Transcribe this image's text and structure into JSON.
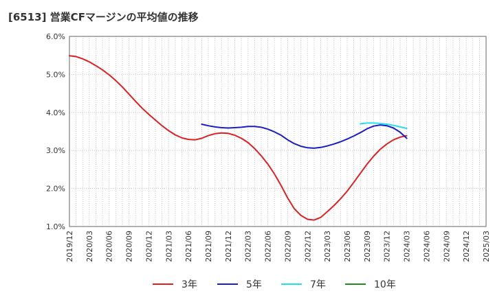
{
  "title": "[6513]  営業CFマージンの平均値の推移",
  "chart_data": {
    "type": "line",
    "title": "[6513]  営業CFマージンの平均値の推移",
    "xlabel": "",
    "ylabel": "",
    "ylim": [
      1.0,
      6.0
    ],
    "y_ticks": [
      "1.0%",
      "2.0%",
      "3.0%",
      "4.0%",
      "5.0%",
      "6.0%"
    ],
    "x_range": [
      "2019/12",
      "2025/03"
    ],
    "x_ticks": [
      "2019/12",
      "2020/03",
      "2020/06",
      "2020/09",
      "2020/12",
      "2021/03",
      "2021/06",
      "2021/09",
      "2021/12",
      "2022/03",
      "2022/06",
      "2022/09",
      "2022/12",
      "2023/03",
      "2023/06",
      "2023/09",
      "2023/12",
      "2024/03",
      "2024/06",
      "2024/09",
      "2024/12",
      "2025/03"
    ],
    "grid": true,
    "legend_position": "bottom",
    "series": [
      {
        "name": "3年",
        "color": "#dd1f1f",
        "points": [
          [
            "2019/12",
            5.49
          ],
          [
            "2020/01",
            5.47
          ],
          [
            "2020/02",
            5.41
          ],
          [
            "2020/03",
            5.33
          ],
          [
            "2020/04",
            5.23
          ],
          [
            "2020/05",
            5.12
          ],
          [
            "2020/06",
            4.99
          ],
          [
            "2020/07",
            4.84
          ],
          [
            "2020/08",
            4.67
          ],
          [
            "2020/09",
            4.48
          ],
          [
            "2020/10",
            4.29
          ],
          [
            "2020/11",
            4.11
          ],
          [
            "2020/12",
            3.95
          ],
          [
            "2021/01",
            3.8
          ],
          [
            "2021/02",
            3.65
          ],
          [
            "2021/03",
            3.52
          ],
          [
            "2021/04",
            3.41
          ],
          [
            "2021/05",
            3.33
          ],
          [
            "2021/06",
            3.29
          ],
          [
            "2021/07",
            3.28
          ],
          [
            "2021/08",
            3.32
          ],
          [
            "2021/09",
            3.39
          ],
          [
            "2021/10",
            3.44
          ],
          [
            "2021/11",
            3.46
          ],
          [
            "2021/12",
            3.45
          ],
          [
            "2022/01",
            3.4
          ],
          [
            "2022/02",
            3.32
          ],
          [
            "2022/03",
            3.21
          ],
          [
            "2022/04",
            3.05
          ],
          [
            "2022/05",
            2.86
          ],
          [
            "2022/06",
            2.64
          ],
          [
            "2022/07",
            2.38
          ],
          [
            "2022/08",
            2.08
          ],
          [
            "2022/09",
            1.75
          ],
          [
            "2022/10",
            1.47
          ],
          [
            "2022/11",
            1.29
          ],
          [
            "2022/12",
            1.19
          ],
          [
            "2023/01",
            1.17
          ],
          [
            "2023/02",
            1.24
          ],
          [
            "2023/03",
            1.39
          ],
          [
            "2023/04",
            1.55
          ],
          [
            "2023/05",
            1.73
          ],
          [
            "2023/06",
            1.93
          ],
          [
            "2023/07",
            2.16
          ],
          [
            "2023/08",
            2.4
          ],
          [
            "2023/09",
            2.64
          ],
          [
            "2023/10",
            2.85
          ],
          [
            "2023/11",
            3.03
          ],
          [
            "2023/12",
            3.17
          ],
          [
            "2024/01",
            3.28
          ],
          [
            "2024/02",
            3.35
          ],
          [
            "2024/03",
            3.39
          ]
        ]
      },
      {
        "name": "5年",
        "color": "#1a1ac8",
        "points": [
          [
            "2021/08",
            3.69
          ],
          [
            "2021/09",
            3.65
          ],
          [
            "2021/10",
            3.62
          ],
          [
            "2021/11",
            3.6
          ],
          [
            "2021/12",
            3.59
          ],
          [
            "2022/01",
            3.6
          ],
          [
            "2022/02",
            3.61
          ],
          [
            "2022/03",
            3.63
          ],
          [
            "2022/04",
            3.63
          ],
          [
            "2022/05",
            3.61
          ],
          [
            "2022/06",
            3.56
          ],
          [
            "2022/07",
            3.49
          ],
          [
            "2022/08",
            3.4
          ],
          [
            "2022/09",
            3.28
          ],
          [
            "2022/10",
            3.18
          ],
          [
            "2022/11",
            3.11
          ],
          [
            "2022/12",
            3.07
          ],
          [
            "2023/01",
            3.06
          ],
          [
            "2023/02",
            3.08
          ],
          [
            "2023/03",
            3.12
          ],
          [
            "2023/04",
            3.17
          ],
          [
            "2023/05",
            3.23
          ],
          [
            "2023/06",
            3.3
          ],
          [
            "2023/07",
            3.38
          ],
          [
            "2023/08",
            3.47
          ],
          [
            "2023/09",
            3.57
          ],
          [
            "2023/10",
            3.64
          ],
          [
            "2023/11",
            3.67
          ],
          [
            "2023/12",
            3.65
          ],
          [
            "2024/01",
            3.59
          ],
          [
            "2024/02",
            3.48
          ],
          [
            "2024/03",
            3.32
          ]
        ]
      },
      {
        "name": "7年",
        "color": "#22e0e8",
        "points": [
          [
            "2023/08",
            3.7
          ],
          [
            "2023/09",
            3.72
          ],
          [
            "2023/10",
            3.72
          ],
          [
            "2023/11",
            3.71
          ],
          [
            "2023/12",
            3.69
          ],
          [
            "2024/01",
            3.66
          ],
          [
            "2024/02",
            3.62
          ],
          [
            "2024/03",
            3.58
          ]
        ]
      },
      {
        "name": "10年",
        "color": "#1e8a1e",
        "points": []
      }
    ]
  }
}
